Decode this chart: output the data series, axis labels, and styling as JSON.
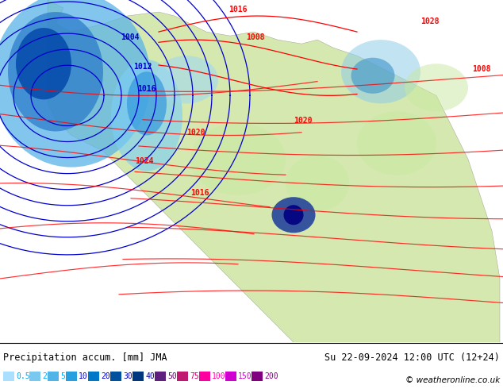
{
  "title_left": "Precipitation accum. [mm] JMA",
  "title_right": "Su 22-09-2024 12:00 UTC (12+24)",
  "copyright": "© weatheronline.co.uk",
  "legend_labels": [
    "0.5",
    "2",
    "5",
    "10",
    "20",
    "30",
    "40",
    "50",
    "75",
    "100",
    "150",
    "200"
  ],
  "legend_colors": [
    "#b0e0ff",
    "#87ceeb",
    "#4fc3f7",
    "#29b6f6",
    "#039be5",
    "#0277bd",
    "#01579b",
    "#7b1fa2",
    "#e91e63",
    "#ff1493",
    "#c800c8",
    "#8b008b"
  ],
  "precip_colormap": [
    "#ffffff",
    "#c8ebff",
    "#a0d4ff",
    "#78bfff",
    "#50aaff",
    "#2895ff",
    "#0070e0",
    "#0050b0",
    "#003080",
    "#001060",
    "#800080",
    "#c000c0",
    "#ff00c0",
    "#ff0080",
    "#ff0040"
  ],
  "background_color": "#e8f4f8",
  "land_color": "#d4e8b0",
  "ocean_color": "#c8e8f8",
  "fig_width": 6.34,
  "fig_height": 4.9,
  "dpi": 100
}
